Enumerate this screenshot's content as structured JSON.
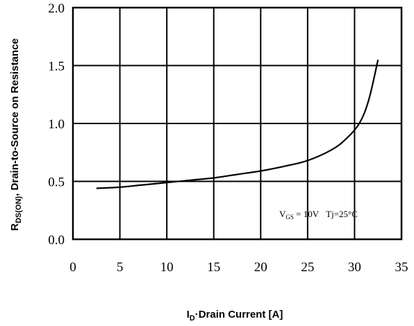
{
  "chart_data": {
    "type": "line",
    "title": "",
    "xlabel": {
      "main": "I",
      "sub": "D",
      "rest": "·Drain Current [A]"
    },
    "ylabel": {
      "main": "R",
      "sub": "DS(ON)",
      "rest": ", Drain-to-Source on Resistance"
    },
    "xlim": [
      0,
      35
    ],
    "ylim": [
      0.0,
      2.0
    ],
    "x_ticks": [
      "0",
      "5",
      "10",
      "15",
      "20",
      "25",
      "30",
      "35"
    ],
    "y_ticks": [
      "0.0",
      "0.5",
      "1.0",
      "1.5",
      "2.0"
    ],
    "grid": true,
    "annotation": {
      "v": "V",
      "v_sub": "GS",
      "v_val": " = 10V",
      "tj": "Tj=25°C"
    },
    "series": [
      {
        "x": [
          2.5,
          5,
          7.5,
          10,
          12.5,
          15,
          17.5,
          20,
          22.5,
          25,
          27.5,
          29,
          30.5,
          31.5,
          32.5
        ],
        "y": [
          0.44,
          0.45,
          0.47,
          0.49,
          0.51,
          0.53,
          0.56,
          0.59,
          0.63,
          0.68,
          0.77,
          0.86,
          1.0,
          1.2,
          1.55
        ]
      }
    ]
  }
}
